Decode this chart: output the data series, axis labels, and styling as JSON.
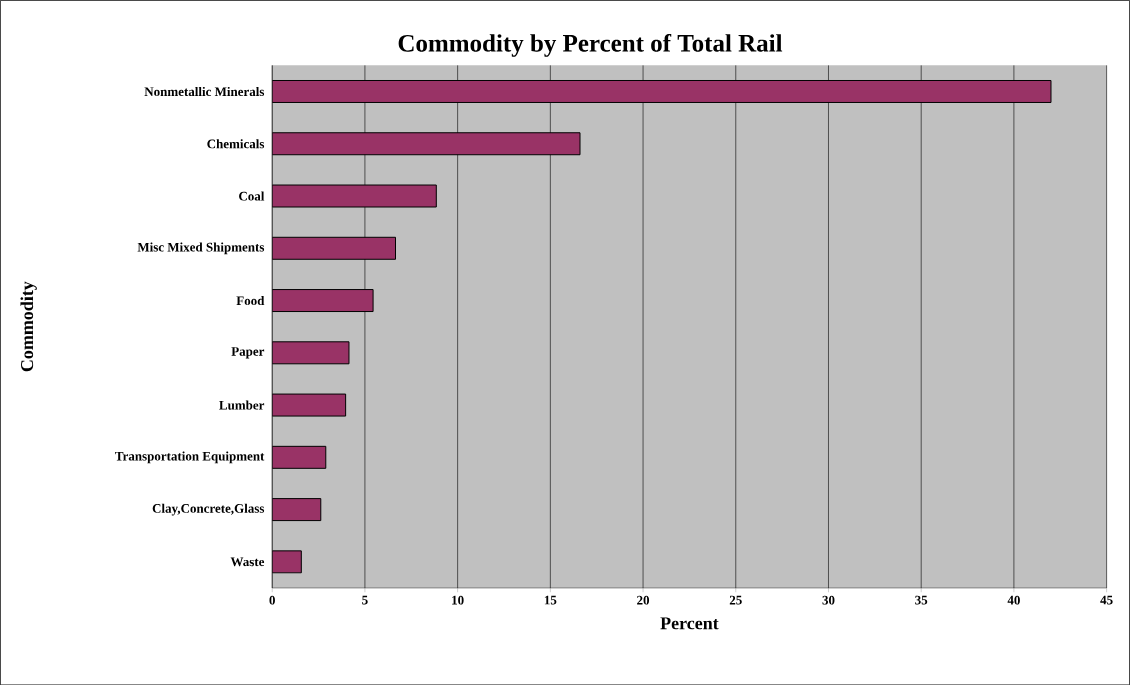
{
  "chart_data": {
    "type": "bar",
    "orientation": "horizontal",
    "title": "Commodity by Percent of Total Rail",
    "xlabel": "Percent",
    "ylabel": "Commodity",
    "categories": [
      "Nonmetallic Minerals",
      "Chemicals",
      "Coal",
      "Misc Mixed Shipments",
      "Food",
      "Paper",
      "Lumber",
      "Transportation Equipment",
      "Clay,Concrete,Glass",
      "Waste"
    ],
    "values": [
      42.0,
      16.6,
      8.85,
      6.65,
      5.44,
      4.14,
      3.96,
      2.89,
      2.62,
      1.57
    ],
    "color": "#993366",
    "xlim": [
      0,
      45
    ],
    "xticks": [
      0,
      5,
      10,
      15,
      20,
      25,
      30,
      35,
      40,
      45
    ],
    "grid": "x"
  }
}
